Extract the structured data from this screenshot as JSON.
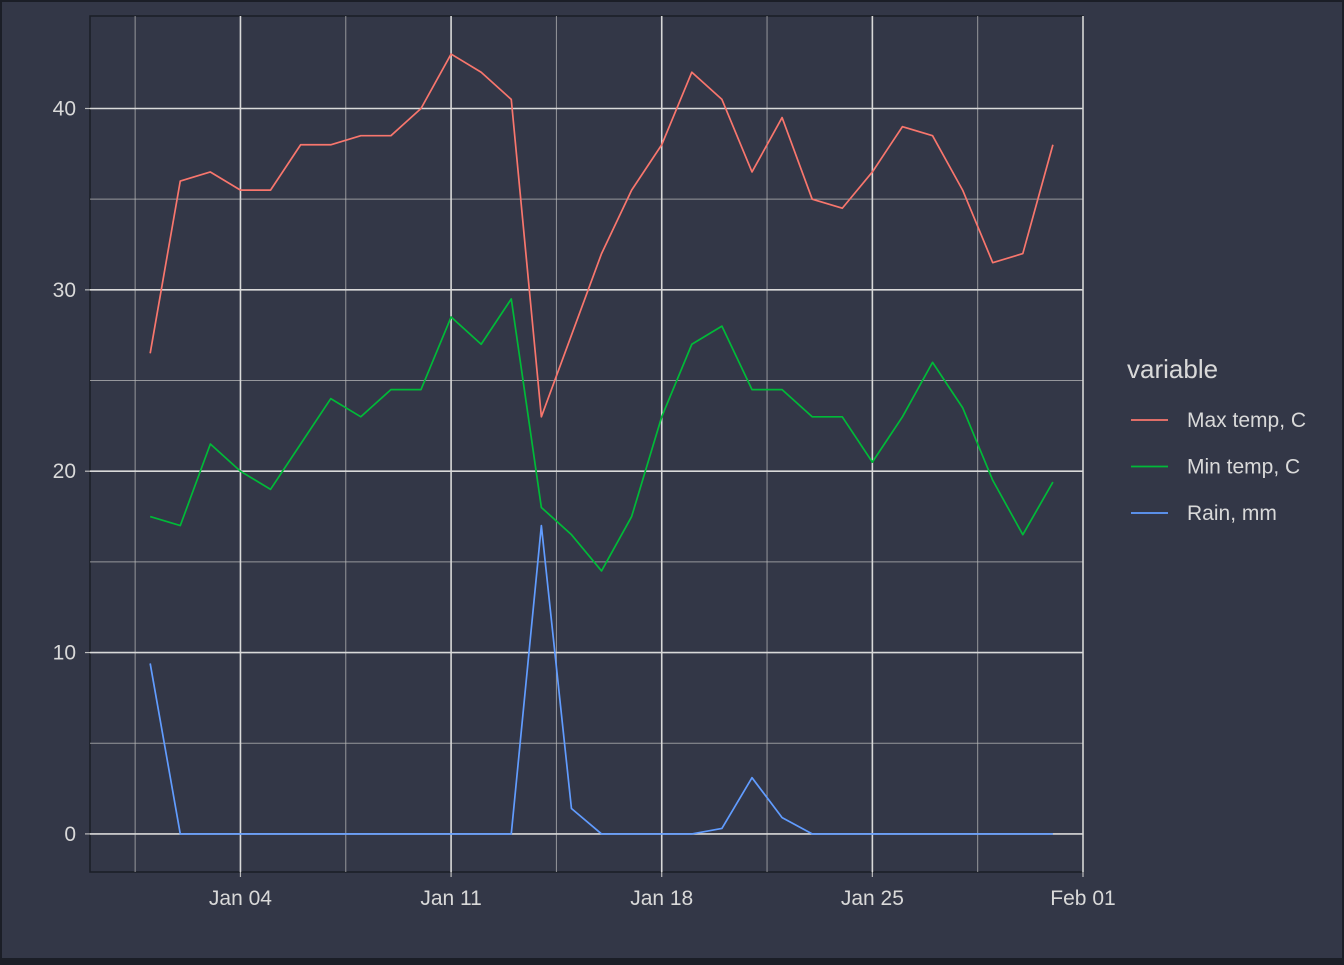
{
  "chart_data": {
    "type": "line",
    "title": "",
    "xlabel": "",
    "ylabel": "",
    "x_type": "date",
    "xlim": [
      "2024-12-30",
      "2025-02-01"
    ],
    "ylim": [
      -2.1,
      45.1
    ],
    "x_ticks": [
      "2025-01-04",
      "2025-01-11",
      "2025-01-18",
      "2025-01-25",
      "2025-02-01"
    ],
    "x_tick_labels": [
      "Jan 04",
      "Jan 11",
      "Jan 18",
      "Jan 25",
      "Feb 01"
    ],
    "y_ticks": [
      0,
      10,
      20,
      30,
      40
    ],
    "y_tick_labels": [
      "0",
      "10",
      "20",
      "30",
      "40"
    ],
    "grid": true,
    "legend": {
      "title": "variable",
      "position": "right"
    },
    "colors": {
      "background": "#333747",
      "frame": "#1b1e27",
      "grid_major": "#d9d9d9",
      "grid_minor": "#b8b8b8",
      "text": "#d9d9d9",
      "tick": "#bdbdbd"
    },
    "x": [
      "2025-01-01",
      "2025-01-02",
      "2025-01-03",
      "2025-01-04",
      "2025-01-05",
      "2025-01-06",
      "2025-01-07",
      "2025-01-08",
      "2025-01-09",
      "2025-01-10",
      "2025-01-11",
      "2025-01-12",
      "2025-01-13",
      "2025-01-14",
      "2025-01-15",
      "2025-01-16",
      "2025-01-17",
      "2025-01-18",
      "2025-01-19",
      "2025-01-20",
      "2025-01-21",
      "2025-01-22",
      "2025-01-23",
      "2025-01-24",
      "2025-01-25",
      "2025-01-26",
      "2025-01-27",
      "2025-01-28",
      "2025-01-29",
      "2025-01-30",
      "2025-01-31"
    ],
    "series": [
      {
        "name": "Max temp, C",
        "color": "#f8766d",
        "values": [
          26.5,
          36.0,
          36.5,
          35.5,
          35.5,
          38.0,
          38.0,
          38.5,
          38.5,
          40.0,
          43.0,
          42.0,
          40.5,
          23.0,
          27.5,
          32.0,
          35.5,
          38.0,
          42.0,
          40.5,
          36.5,
          39.5,
          35.0,
          34.5,
          36.5,
          39.0,
          38.5,
          35.5,
          31.5,
          32.0,
          38.0
        ]
      },
      {
        "name": "Min temp, C",
        "color": "#00ba38",
        "values": [
          17.5,
          17.0,
          21.5,
          20.0,
          19.0,
          21.5,
          24.0,
          23.0,
          24.5,
          24.5,
          28.5,
          27.0,
          29.5,
          18.0,
          16.5,
          14.5,
          17.5,
          23.0,
          27.0,
          28.0,
          24.5,
          24.5,
          23.0,
          23.0,
          20.5,
          23.0,
          26.0,
          23.5,
          19.5,
          16.5,
          19.4
        ]
      },
      {
        "name": "Rain, mm",
        "color": "#619cff",
        "values": [
          9.4,
          0,
          0,
          0,
          0,
          0,
          0,
          0,
          0,
          0,
          0,
          0,
          0,
          17.0,
          1.4,
          0,
          0,
          0,
          0,
          0.3,
          3.1,
          0.9,
          0,
          0,
          0,
          0,
          0,
          0,
          0,
          0,
          0
        ]
      }
    ]
  }
}
